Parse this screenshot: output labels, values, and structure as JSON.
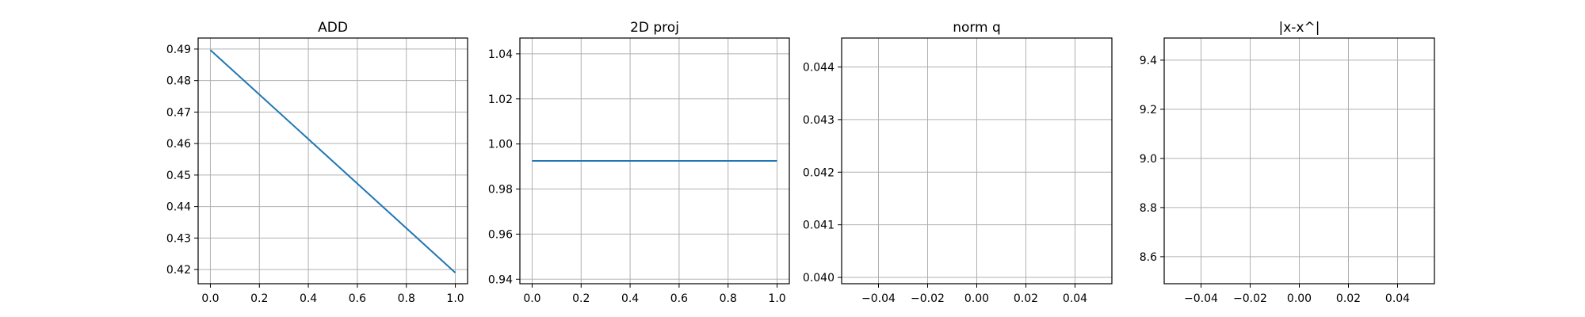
{
  "chart_data": [
    {
      "type": "line",
      "title": "ADD",
      "xlabel": "",
      "ylabel": "",
      "xlim": [
        -0.05,
        1.05
      ],
      "ylim": [
        0.4155,
        0.4935
      ],
      "xticks": [
        0.0,
        0.2,
        0.4,
        0.6,
        0.8,
        1.0
      ],
      "xtick_labels": [
        "0.0",
        "0.2",
        "0.4",
        "0.6",
        "0.8",
        "1.0"
      ],
      "yticks": [
        0.42,
        0.43,
        0.44,
        0.45,
        0.46,
        0.47,
        0.48,
        0.49
      ],
      "ytick_labels": [
        "0.42",
        "0.43",
        "0.44",
        "0.45",
        "0.46",
        "0.47",
        "0.48",
        "0.49"
      ],
      "grid": true,
      "series": [
        {
          "x": [
            0,
            1
          ],
          "y": [
            0.4897,
            0.419
          ],
          "color": "#1f77b4"
        }
      ]
    },
    {
      "type": "line",
      "title": "2D proj",
      "xlabel": "",
      "ylabel": "",
      "xlim": [
        -0.05,
        1.05
      ],
      "ylim": [
        0.938,
        1.047
      ],
      "xticks": [
        0.0,
        0.2,
        0.4,
        0.6,
        0.8,
        1.0
      ],
      "xtick_labels": [
        "0.0",
        "0.2",
        "0.4",
        "0.6",
        "0.8",
        "1.0"
      ],
      "yticks": [
        0.94,
        0.96,
        0.98,
        1.0,
        1.02,
        1.04
      ],
      "ytick_labels": [
        "0.94",
        "0.96",
        "0.98",
        "1.00",
        "1.02",
        "1.04"
      ],
      "grid": true,
      "series": [
        {
          "x": [
            0,
            1
          ],
          "y": [
            0.9925,
            0.9925
          ],
          "color": "#1f77b4"
        }
      ]
    },
    {
      "type": "line",
      "title": "norm q",
      "xlabel": "",
      "ylabel": "",
      "xlim": [
        -0.055,
        0.055
      ],
      "ylim": [
        0.03988,
        0.04455
      ],
      "xticks": [
        -0.04,
        -0.02,
        0.0,
        0.02,
        0.04
      ],
      "xtick_labels": [
        "−0.04",
        "−0.02",
        "0.00",
        "0.02",
        "0.04"
      ],
      "yticks": [
        0.04,
        0.041,
        0.042,
        0.043,
        0.044
      ],
      "ytick_labels": [
        "0.040",
        "0.041",
        "0.042",
        "0.043",
        "0.044"
      ],
      "grid": true,
      "series": []
    },
    {
      "type": "line",
      "title": "|x-x^|",
      "xlabel": "",
      "ylabel": "",
      "xlim": [
        -0.055,
        0.055
      ],
      "ylim": [
        8.49,
        9.49
      ],
      "xticks": [
        -0.04,
        -0.02,
        0.0,
        0.02,
        0.04
      ],
      "xtick_labels": [
        "−0.04",
        "−0.02",
        "0.00",
        "0.02",
        "0.04"
      ],
      "yticks": [
        8.6,
        8.8,
        9.0,
        9.2,
        9.4
      ],
      "ytick_labels": [
        "8.6",
        "8.8",
        "9.0",
        "9.2",
        "9.4"
      ],
      "grid": true,
      "series": []
    }
  ]
}
